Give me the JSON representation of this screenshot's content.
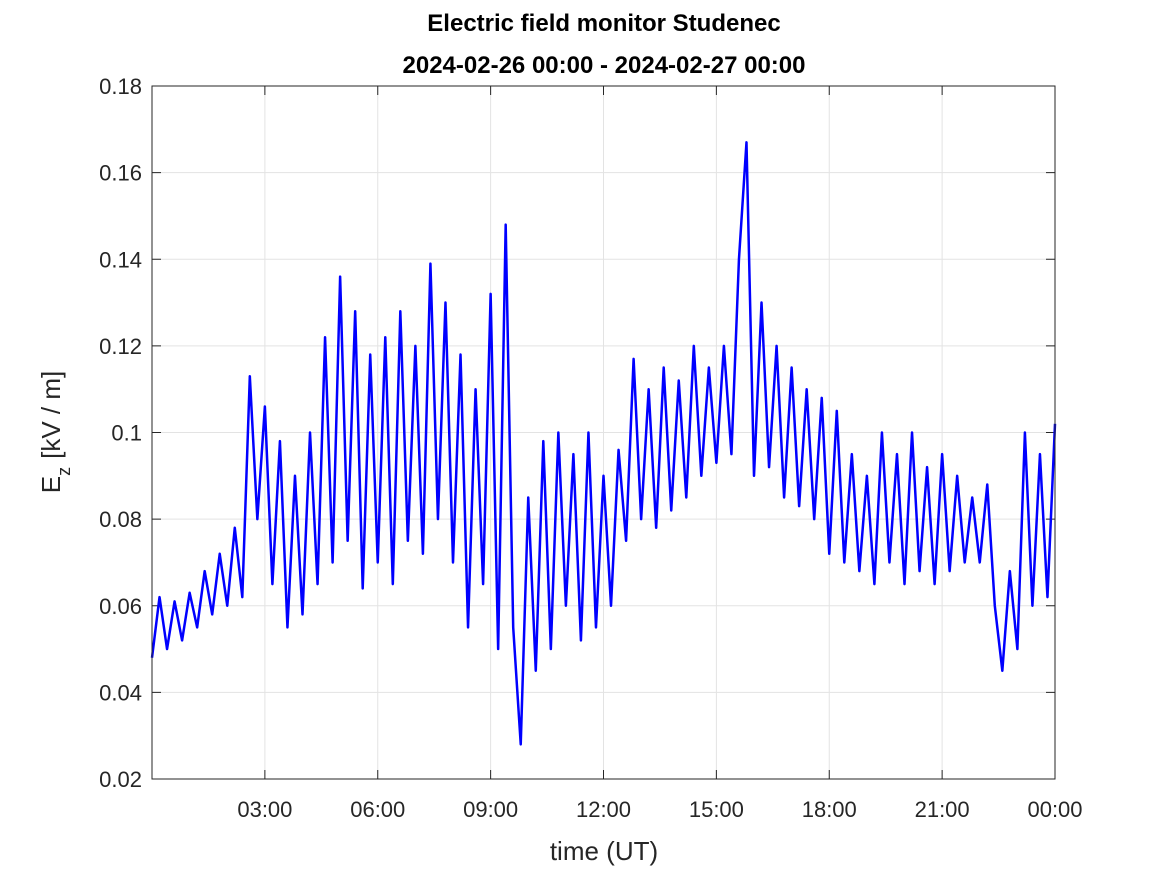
{
  "chart_data": {
    "type": "line",
    "title": "Electric field monitor Studenec",
    "subtitle": "2024-02-26 00:00 - 2024-02-27 00:00",
    "xlabel": "time (UT)",
    "ylabel": {
      "symbol": "E",
      "subscript": "z",
      "unit": "[kV / m]"
    },
    "color": "#0000ff",
    "grid": true,
    "xlim": [
      0,
      24
    ],
    "ylim": [
      0.02,
      0.18
    ],
    "xticks": [
      {
        "value": 3,
        "label": "03:00"
      },
      {
        "value": 6,
        "label": "06:00"
      },
      {
        "value": 9,
        "label": "09:00"
      },
      {
        "value": 12,
        "label": "12:00"
      },
      {
        "value": 15,
        "label": "15:00"
      },
      {
        "value": 18,
        "label": "18:00"
      },
      {
        "value": 21,
        "label": "21:00"
      },
      {
        "value": 24,
        "label": "00:00"
      }
    ],
    "yticks": [
      0.02,
      0.04,
      0.06,
      0.08,
      0.1,
      0.12,
      0.14,
      0.16,
      0.18
    ],
    "x": [
      0,
      0.2,
      0.4,
      0.6,
      0.8,
      1,
      1.2,
      1.4,
      1.6,
      1.8,
      2,
      2.2,
      2.4,
      2.6,
      2.8,
      3,
      3.2,
      3.4,
      3.6,
      3.8,
      4,
      4.2,
      4.4,
      4.6,
      4.8,
      5,
      5.2,
      5.4,
      5.6,
      5.8,
      6,
      6.2,
      6.4,
      6.6,
      6.8,
      7,
      7.2,
      7.4,
      7.6,
      7.8,
      8,
      8.2,
      8.4,
      8.6,
      8.8,
      9,
      9.2,
      9.4,
      9.6,
      9.8,
      10,
      10.2,
      10.4,
      10.6,
      10.8,
      11,
      11.2,
      11.4,
      11.6,
      11.8,
      12,
      12.2,
      12.4,
      12.6,
      12.8,
      13,
      13.2,
      13.4,
      13.6,
      13.8,
      14,
      14.2,
      14.4,
      14.6,
      14.8,
      15,
      15.2,
      15.4,
      15.6,
      15.8,
      16,
      16.2,
      16.4,
      16.6,
      16.8,
      17,
      17.2,
      17.4,
      17.6,
      17.8,
      18,
      18.2,
      18.4,
      18.6,
      18.8,
      19,
      19.2,
      19.4,
      19.6,
      19.8,
      20,
      20.2,
      20.4,
      20.6,
      20.8,
      21,
      21.2,
      21.4,
      21.6,
      21.8,
      22,
      22.2,
      22.4,
      22.6,
      22.8,
      23,
      23.2,
      23.4,
      23.6,
      23.8,
      24
    ],
    "values": [
      0.048,
      0.062,
      0.05,
      0.061,
      0.052,
      0.063,
      0.055,
      0.068,
      0.058,
      0.072,
      0.06,
      0.078,
      0.062,
      0.113,
      0.08,
      0.106,
      0.065,
      0.098,
      0.055,
      0.09,
      0.058,
      0.1,
      0.065,
      0.122,
      0.07,
      0.136,
      0.075,
      0.128,
      0.064,
      0.118,
      0.07,
      0.122,
      0.065,
      0.128,
      0.075,
      0.12,
      0.072,
      0.139,
      0.08,
      0.13,
      0.07,
      0.118,
      0.055,
      0.11,
      0.065,
      0.132,
      0.05,
      0.148,
      0.055,
      0.028,
      0.085,
      0.045,
      0.098,
      0.05,
      0.1,
      0.06,
      0.095,
      0.052,
      0.1,
      0.055,
      0.09,
      0.06,
      0.096,
      0.075,
      0.117,
      0.08,
      0.11,
      0.078,
      0.115,
      0.082,
      0.112,
      0.085,
      0.12,
      0.09,
      0.115,
      0.093,
      0.12,
      0.095,
      0.14,
      0.167,
      0.09,
      0.13,
      0.092,
      0.12,
      0.085,
      0.115,
      0.083,
      0.11,
      0.08,
      0.108,
      0.072,
      0.105,
      0.07,
      0.095,
      0.068,
      0.09,
      0.065,
      0.1,
      0.07,
      0.095,
      0.065,
      0.1,
      0.068,
      0.092,
      0.065,
      0.095,
      0.068,
      0.09,
      0.07,
      0.085,
      0.07,
      0.088,
      0.06,
      0.045,
      0.068,
      0.05,
      0.1,
      0.06,
      0.095,
      0.062,
      0.102
    ]
  }
}
